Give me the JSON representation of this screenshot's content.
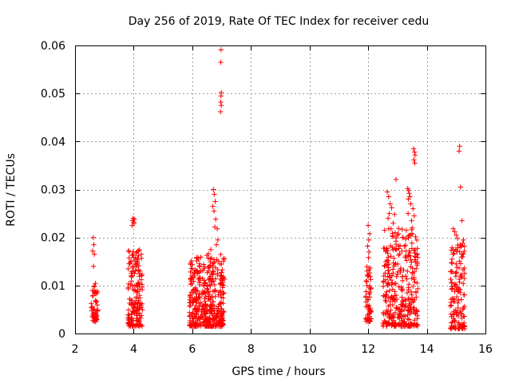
{
  "chart_data": {
    "type": "scatter",
    "title": "Day 256 of 2019, Rate Of TEC Index for receiver cedu",
    "xlabel": "GPS time / hours",
    "ylabel": "ROTI / TECUs",
    "xlim": [
      2,
      16
    ],
    "ylim": [
      0,
      0.06
    ],
    "x_ticks": [
      2,
      4,
      6,
      8,
      10,
      12,
      14,
      16
    ],
    "x_tick_labels": [
      "2",
      "4",
      "6",
      "8",
      "10",
      "12",
      "14",
      "16"
    ],
    "y_ticks": [
      0,
      0.01,
      0.02,
      0.03,
      0.04,
      0.05,
      0.06
    ],
    "y_tick_labels": [
      "0",
      "0.01",
      "0.02",
      "0.03",
      "0.04",
      "0.05",
      "0.06"
    ],
    "grid": true,
    "marker": "+",
    "color": "#ff0000",
    "clusters": [
      {
        "x_range": [
          2.55,
          2.78
        ],
        "y_range": [
          0.0025,
          0.0105
        ],
        "count": 50
      },
      {
        "x_range": [
          3.8,
          4.3
        ],
        "y_range": [
          0.0015,
          0.0175
        ],
        "count": 170
      },
      {
        "x_range": [
          5.9,
          7.1
        ],
        "y_range": [
          0.0015,
          0.0165
        ],
        "count": 420
      },
      {
        "x_range": [
          11.9,
          12.1
        ],
        "y_range": [
          0.0025,
          0.014
        ],
        "count": 60
      },
      {
        "x_range": [
          12.5,
          13.7
        ],
        "y_range": [
          0.0015,
          0.022
        ],
        "count": 330
      },
      {
        "x_range": [
          14.8,
          15.3
        ],
        "y_range": [
          0.001,
          0.0185
        ],
        "count": 140
      }
    ],
    "series": [
      {
        "name": "ROTI high values",
        "points": [
          [
            2.62,
            0.02
          ],
          [
            2.64,
            0.0185
          ],
          [
            2.6,
            0.0172
          ],
          [
            2.66,
            0.0165
          ],
          [
            2.63,
            0.014
          ],
          [
            3.95,
            0.0225
          ],
          [
            4.0,
            0.0232
          ],
          [
            4.02,
            0.0238
          ],
          [
            3.98,
            0.024
          ],
          [
            4.01,
            0.0229
          ],
          [
            3.97,
            0.0235
          ],
          [
            6.2,
            0.0158
          ],
          [
            6.55,
            0.0166
          ],
          [
            6.63,
            0.0175
          ],
          [
            6.72,
            0.03
          ],
          [
            6.75,
            0.029
          ],
          [
            6.78,
            0.0275
          ],
          [
            6.7,
            0.0265
          ],
          [
            6.74,
            0.0255
          ],
          [
            6.8,
            0.0238
          ],
          [
            6.77,
            0.0222
          ],
          [
            6.85,
            0.0218
          ],
          [
            6.82,
            0.0185
          ],
          [
            6.87,
            0.0195
          ],
          [
            6.98,
            0.0591
          ],
          [
            6.97,
            0.0565
          ],
          [
            6.99,
            0.0502
          ],
          [
            6.98,
            0.0495
          ],
          [
            6.97,
            0.0482
          ],
          [
            6.99,
            0.0475
          ],
          [
            6.96,
            0.0462
          ],
          [
            12.0,
            0.0225
          ],
          [
            12.05,
            0.0208
          ],
          [
            12.02,
            0.0195
          ],
          [
            11.98,
            0.0182
          ],
          [
            12.03,
            0.017
          ],
          [
            12.01,
            0.0158
          ],
          [
            12.65,
            0.0295
          ],
          [
            12.7,
            0.0285
          ],
          [
            12.75,
            0.027
          ],
          [
            12.8,
            0.0262
          ],
          [
            12.72,
            0.025
          ],
          [
            12.9,
            0.0248
          ],
          [
            12.95,
            0.0321
          ],
          [
            12.68,
            0.024
          ],
          [
            12.85,
            0.023
          ],
          [
            12.78,
            0.0218
          ],
          [
            13.0,
            0.0205
          ],
          [
            12.92,
            0.021
          ],
          [
            13.35,
            0.0302
          ],
          [
            13.38,
            0.0298
          ],
          [
            13.4,
            0.0292
          ],
          [
            13.42,
            0.0285
          ],
          [
            13.37,
            0.028
          ],
          [
            13.45,
            0.027
          ],
          [
            13.36,
            0.025
          ],
          [
            13.48,
            0.0235
          ],
          [
            13.5,
            0.022
          ],
          [
            13.3,
            0.0215
          ],
          [
            13.44,
            0.0205
          ],
          [
            13.55,
            0.0385
          ],
          [
            13.58,
            0.0378
          ],
          [
            13.6,
            0.0372
          ],
          [
            13.56,
            0.0362
          ],
          [
            13.59,
            0.0355
          ],
          [
            13.53,
            0.026
          ],
          [
            13.57,
            0.0245
          ],
          [
            14.9,
            0.0218
          ],
          [
            14.95,
            0.0212
          ],
          [
            15.0,
            0.0205
          ],
          [
            15.05,
            0.0198
          ],
          [
            15.12,
            0.039
          ],
          [
            15.1,
            0.038
          ],
          [
            15.15,
            0.0305
          ],
          [
            15.2,
            0.0235
          ],
          [
            15.25,
            0.0195
          ],
          [
            15.22,
            0.0188
          ]
        ]
      }
    ]
  }
}
